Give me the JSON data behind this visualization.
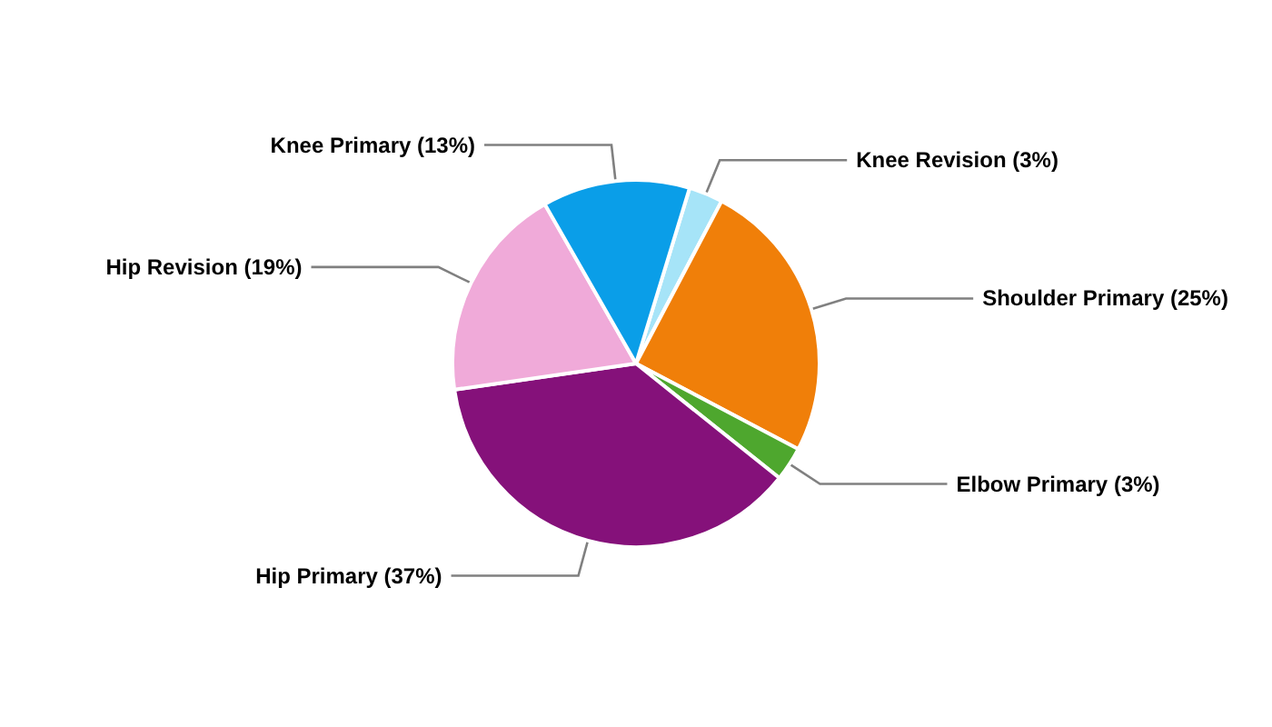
{
  "chart_data": {
    "type": "pie",
    "categories": [
      "Knee Revision (3%)",
      "Shoulder Primary (25%)",
      "Elbow Primary (3%)",
      "Hip Primary (37%)",
      "Hip Revision (19%)",
      "Knee Primary (13%)"
    ],
    "values": [
      3,
      25,
      3,
      37,
      19,
      13
    ],
    "colors": [
      "#a6e4f8",
      "#f07f09",
      "#4ea72e",
      "#85117a",
      "#f0aad9",
      "#0a9ee8"
    ]
  }
}
